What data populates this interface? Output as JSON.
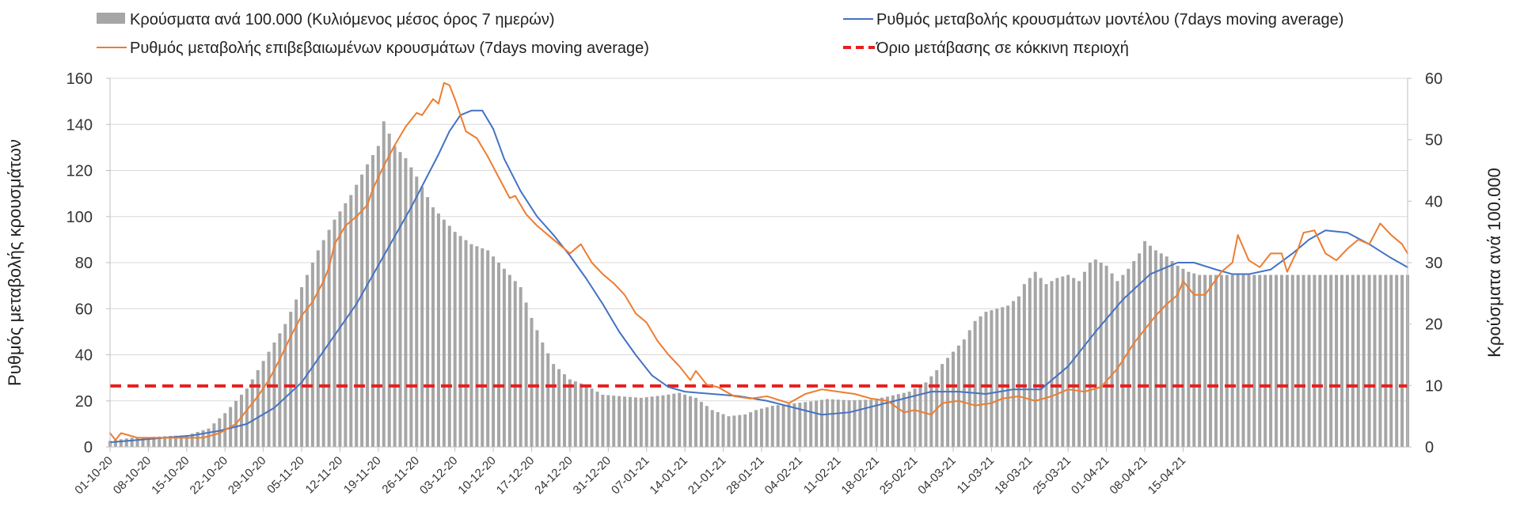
{
  "chart_data": {
    "type": "bar+line",
    "legend": [
      {
        "key": "bars",
        "label": "Κρούσματα ανά 100.000 (Κυλιόμενος μέσος όρος 7 ημερών)",
        "color": "#a6a6a6",
        "marker": "bar"
      },
      {
        "key": "orange",
        "label": "Ρυθμός μεταβολής επιβεβαιωμένων κρουσμάτων (7days moving average)",
        "color": "#ed7d31",
        "marker": "line"
      },
      {
        "key": "blue",
        "label": "Ρυθμός μεταβολής κρουσμάτων μοντέλου (7days moving average)",
        "color": "#4472c4",
        "marker": "line"
      },
      {
        "key": "threshold",
        "label": "Όριο μετάβασης σε κόκκινη περιοχή",
        "color": "#e81e1e",
        "marker": "dashed"
      }
    ],
    "y_left": {
      "label": "Ρυθμός μεταβολής κρουσμάτων",
      "min": 0,
      "max": 160,
      "ticks": [
        0,
        20,
        40,
        60,
        80,
        100,
        120,
        140,
        160
      ]
    },
    "y_right": {
      "label": "Κρούσματα ανά 100.000",
      "min": 0,
      "max": 60,
      "ticks": [
        0,
        10,
        20,
        30,
        40,
        50,
        60
      ]
    },
    "x_tick_labels": [
      "01-10-20",
      "08-10-20",
      "15-10-20",
      "22-10-20",
      "29-10-20",
      "05-11-20",
      "12-11-20",
      "19-11-20",
      "26-11-20",
      "03-12-20",
      "10-12-20",
      "17-12-20",
      "24-12-20",
      "31-12-20",
      "07-01-21",
      "14-01-21",
      "21-01-21",
      "28-01-21",
      "04-02-21",
      "11-02-21",
      "18-02-21",
      "25-02-21",
      "04-03-21",
      "11-03-21",
      "18-03-21",
      "25-03-21",
      "01-04-21",
      "08-04-21",
      "15-04-21"
    ],
    "threshold_value": 26.5,
    "bars_anchors": [
      [
        0,
        1.0
      ],
      [
        4,
        1.5
      ],
      [
        7,
        1.6
      ],
      [
        11,
        1.8
      ],
      [
        14,
        1.9
      ],
      [
        18,
        3.0
      ],
      [
        21,
        5.5
      ],
      [
        25,
        9.5
      ],
      [
        28,
        14.0
      ],
      [
        32,
        20.0
      ],
      [
        35,
        26.0
      ],
      [
        38,
        32.0
      ],
      [
        41,
        37.0
      ],
      [
        44,
        41.0
      ],
      [
        47,
        46.0
      ],
      [
        49,
        49.0
      ],
      [
        50,
        53.0
      ],
      [
        52,
        49.0
      ],
      [
        54,
        47.0
      ],
      [
        56,
        44.0
      ],
      [
        59,
        39.0
      ],
      [
        61,
        37.0
      ],
      [
        63,
        35.0
      ],
      [
        66,
        33.0
      ],
      [
        69,
        32.0
      ],
      [
        72,
        29.0
      ],
      [
        75,
        26.0
      ],
      [
        77,
        21.0
      ],
      [
        79,
        17.0
      ],
      [
        81,
        13.5
      ],
      [
        84,
        11.0
      ],
      [
        87,
        10.0
      ],
      [
        90,
        8.5
      ],
      [
        94,
        8.2
      ],
      [
        97,
        8.0
      ],
      [
        101,
        8.4
      ],
      [
        104,
        8.8
      ],
      [
        107,
        8.0
      ],
      [
        110,
        6.0
      ],
      [
        113,
        5.0
      ],
      [
        116,
        5.3
      ],
      [
        118,
        6.0
      ],
      [
        121,
        6.7
      ],
      [
        124,
        7.0
      ],
      [
        128,
        7.4
      ],
      [
        131,
        7.8
      ],
      [
        135,
        7.6
      ],
      [
        139,
        7.7
      ],
      [
        142,
        8.2
      ],
      [
        146,
        9.0
      ],
      [
        149,
        10.5
      ],
      [
        152,
        13.5
      ],
      [
        154,
        15.5
      ],
      [
        156,
        17.5
      ],
      [
        158,
        20.5
      ],
      [
        160,
        22.0
      ],
      [
        162,
        22.5
      ],
      [
        164,
        23.0
      ],
      [
        166,
        24.5
      ],
      [
        167,
        26.5
      ],
      [
        169,
        28.5
      ],
      [
        171,
        26.5
      ],
      [
        173,
        27.5
      ],
      [
        175,
        28.0
      ],
      [
        177,
        27.0
      ],
      [
        179,
        30.0
      ],
      [
        180,
        30.5
      ],
      [
        182,
        29.5
      ],
      [
        184,
        27.0
      ],
      [
        186,
        29.0
      ],
      [
        188,
        31.5
      ],
      [
        189,
        33.5
      ],
      [
        191,
        32.0
      ],
      [
        193,
        31.0
      ],
      [
        195,
        29.5
      ],
      [
        197,
        28.5
      ],
      [
        199,
        28.0
      ]
    ],
    "orange_anchors": [
      [
        0,
        6
      ],
      [
        1,
        3
      ],
      [
        2,
        6
      ],
      [
        5,
        4
      ],
      [
        9,
        4
      ],
      [
        12,
        4
      ],
      [
        17,
        4
      ],
      [
        20,
        6
      ],
      [
        23,
        10
      ],
      [
        25,
        16
      ],
      [
        27,
        22
      ],
      [
        29,
        29
      ],
      [
        31,
        38
      ],
      [
        33,
        48
      ],
      [
        35,
        57
      ],
      [
        37,
        63
      ],
      [
        39,
        72
      ],
      [
        40,
        78
      ],
      [
        41,
        88
      ],
      [
        43,
        96
      ],
      [
        45,
        100
      ],
      [
        47,
        105
      ],
      [
        48,
        112
      ],
      [
        50,
        122
      ],
      [
        52,
        131
      ],
      [
        54,
        139
      ],
      [
        56,
        145
      ],
      [
        57,
        144
      ],
      [
        59,
        151
      ],
      [
        60,
        149
      ],
      [
        61,
        158
      ],
      [
        62,
        157
      ],
      [
        63,
        151
      ],
      [
        65,
        137
      ],
      [
        67,
        134
      ],
      [
        69,
        126
      ],
      [
        71,
        117
      ],
      [
        73,
        108
      ],
      [
        74,
        109
      ],
      [
        76,
        101
      ],
      [
        78,
        96
      ],
      [
        80,
        92
      ],
      [
        82,
        88
      ],
      [
        84,
        84
      ],
      [
        86,
        88
      ],
      [
        88,
        80
      ],
      [
        90,
        75
      ],
      [
        92,
        71
      ],
      [
        94,
        66
      ],
      [
        96,
        58
      ],
      [
        98,
        54
      ],
      [
        100,
        46
      ],
      [
        102,
        40
      ],
      [
        104,
        35
      ],
      [
        106,
        29
      ],
      [
        107,
        33
      ],
      [
        109,
        27
      ],
      [
        111,
        26
      ],
      [
        114,
        22
      ],
      [
        117,
        21
      ],
      [
        120,
        22
      ],
      [
        124,
        19
      ],
      [
        127,
        23
      ],
      [
        130,
        25
      ],
      [
        133,
        24
      ],
      [
        136,
        23
      ],
      [
        139,
        21
      ],
      [
        142,
        20
      ],
      [
        145,
        15
      ],
      [
        147,
        16
      ],
      [
        150,
        14
      ],
      [
        152,
        19
      ],
      [
        155,
        20
      ],
      [
        158,
        18
      ],
      [
        161,
        19
      ],
      [
        163,
        21
      ],
      [
        166,
        22
      ],
      [
        169,
        20
      ],
      [
        172,
        22
      ],
      [
        175,
        25
      ],
      [
        178,
        24
      ],
      [
        181,
        26
      ],
      [
        184,
        34
      ],
      [
        187,
        45
      ],
      [
        189,
        51
      ],
      [
        191,
        57
      ],
      [
        193,
        62
      ],
      [
        195,
        66
      ],
      [
        196,
        72
      ],
      [
        198,
        66
      ],
      [
        200,
        66
      ],
      [
        203,
        76
      ],
      [
        205,
        80
      ],
      [
        206,
        92
      ],
      [
        208,
        81
      ],
      [
        210,
        78
      ],
      [
        212,
        84
      ],
      [
        214,
        84
      ],
      [
        215,
        76
      ],
      [
        217,
        86
      ],
      [
        218,
        93
      ],
      [
        220,
        94
      ],
      [
        222,
        84
      ],
      [
        224,
        81
      ],
      [
        226,
        86
      ],
      [
        228,
        90
      ],
      [
        230,
        88
      ],
      [
        232,
        97
      ],
      [
        234,
        92
      ],
      [
        236,
        88
      ],
      [
        237,
        84
      ]
    ],
    "blue_anchors": [
      [
        0,
        2
      ],
      [
        5,
        3
      ],
      [
        10,
        4
      ],
      [
        15,
        5
      ],
      [
        20,
        7
      ],
      [
        25,
        10
      ],
      [
        30,
        17
      ],
      [
        35,
        28
      ],
      [
        40,
        45
      ],
      [
        45,
        62
      ],
      [
        50,
        83
      ],
      [
        55,
        104
      ],
      [
        60,
        127
      ],
      [
        62,
        137
      ],
      [
        64,
        144
      ],
      [
        66,
        146
      ],
      [
        68,
        146
      ],
      [
        70,
        138
      ],
      [
        72,
        125
      ],
      [
        75,
        111
      ],
      [
        78,
        100
      ],
      [
        81,
        92
      ],
      [
        84,
        83
      ],
      [
        87,
        73
      ],
      [
        90,
        62
      ],
      [
        93,
        50
      ],
      [
        96,
        40
      ],
      [
        99,
        31
      ],
      [
        102,
        26
      ],
      [
        105,
        24
      ],
      [
        110,
        23
      ],
      [
        115,
        22
      ],
      [
        120,
        20
      ],
      [
        125,
        17
      ],
      [
        130,
        14
      ],
      [
        135,
        15
      ],
      [
        140,
        18
      ],
      [
        145,
        21
      ],
      [
        150,
        24
      ],
      [
        155,
        24
      ],
      [
        160,
        23
      ],
      [
        165,
        25
      ],
      [
        170,
        25
      ],
      [
        175,
        35
      ],
      [
        180,
        50
      ],
      [
        185,
        64
      ],
      [
        190,
        75
      ],
      [
        195,
        80
      ],
      [
        198,
        80
      ],
      [
        202,
        77
      ],
      [
        205,
        75
      ],
      [
        208,
        75
      ],
      [
        212,
        77
      ],
      [
        216,
        84
      ],
      [
        219,
        90
      ],
      [
        222,
        94
      ],
      [
        226,
        93
      ],
      [
        230,
        88
      ],
      [
        234,
        82
      ],
      [
        237,
        78
      ]
    ],
    "num_days": 238,
    "num_bars": 238
  }
}
